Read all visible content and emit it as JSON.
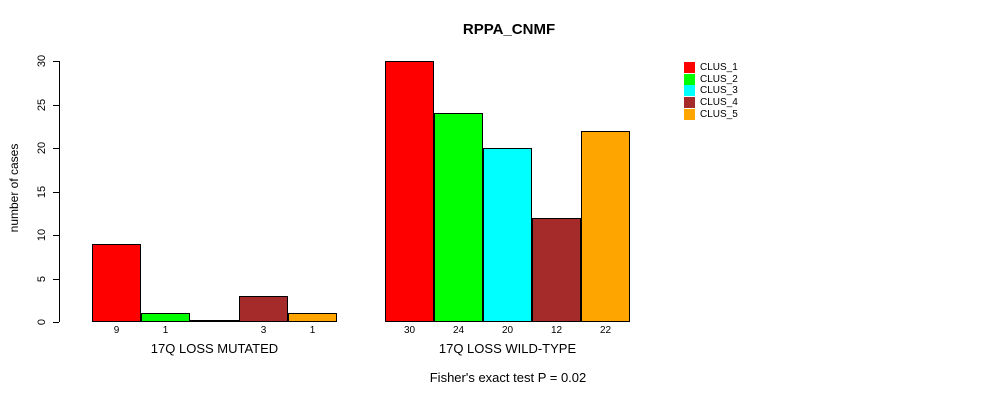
{
  "title": "RPPA_CNMF",
  "footer": {
    "text": "Fisher's exact test P = 0.02"
  },
  "y_axis": {
    "label": "number of cases",
    "ticks": [
      0,
      5,
      10,
      15,
      20,
      25,
      30
    ]
  },
  "chart_data": {
    "type": "bar",
    "title": "RPPA_CNMF",
    "ylabel": "number of cases",
    "xlabel": "",
    "ylim": [
      0,
      30
    ],
    "grid": false,
    "legend_position": "top-right",
    "series": [
      "CLUS_1",
      "CLUS_2",
      "CLUS_3",
      "CLUS_4",
      "CLUS_5"
    ],
    "colors": [
      "#FF0000",
      "#00FF00",
      "#00FFFF",
      "#A52A2A",
      "#FFA500"
    ],
    "groups": [
      {
        "label": "17Q LOSS MUTATED",
        "values": [
          9,
          1,
          0,
          3,
          1
        ],
        "bar_labels": [
          "9",
          "1",
          "",
          "3",
          "1"
        ]
      },
      {
        "label": "17Q LOSS WILD-TYPE",
        "values": [
          30,
          24,
          20,
          12,
          22
        ],
        "bar_labels": [
          "30",
          "24",
          "20",
          "12",
          "22"
        ]
      }
    ]
  }
}
